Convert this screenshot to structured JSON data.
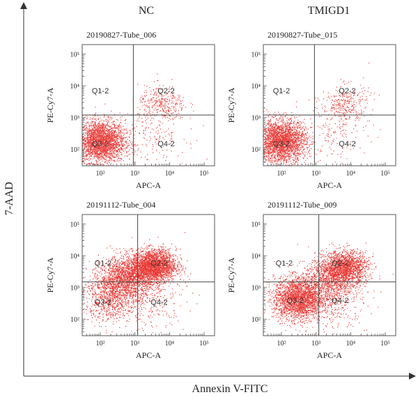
{
  "figure": {
    "column_titles": [
      "NC",
      "TMIGD1"
    ],
    "outer_y_label": "7-AAD",
    "outer_x_label": "Annexin V-FITC"
  },
  "chart_data": [
    {
      "type": "scatter",
      "title": "20190827-Tube_006",
      "xlabel": "APC-A",
      "ylabel": "PE-Cy7-A",
      "x_scale": "log",
      "y_scale": "log",
      "xlim": [
        30,
        200000
      ],
      "ylim": [
        30,
        200000
      ],
      "x_ticks": [
        "10²",
        "10³",
        "10⁴",
        "10⁵"
      ],
      "y_ticks": [
        "10²",
        "10³",
        "10⁴",
        "10⁵"
      ],
      "gate": {
        "x": 900,
        "y": 1200
      },
      "quadrants": [
        {
          "label": "Q1-2",
          "x": 100,
          "y": 7000
        },
        {
          "label": "Q2-2",
          "x": 8000,
          "y": 7000
        },
        {
          "label": "Q3-2",
          "x": 100,
          "y": 150
        },
        {
          "label": "Q4-2",
          "x": 8000,
          "y": 150
        }
      ],
      "clusters": [
        {
          "x": 100,
          "y": 180,
          "spread_x": 0.35,
          "spread_y": 0.33,
          "count": 2600
        },
        {
          "x": 6000,
          "y": 2500,
          "spread_x": 0.35,
          "spread_y": 0.3,
          "count": 320
        },
        {
          "x": 3000,
          "y": 300,
          "spread_x": 0.5,
          "spread_y": 0.45,
          "count": 160
        }
      ],
      "point_color": "#e8231e"
    },
    {
      "type": "scatter",
      "title": "20190827-Tube_015",
      "xlabel": "APC-A",
      "ylabel": "PE-Cy7-A",
      "x_scale": "log",
      "y_scale": "log",
      "xlim": [
        30,
        200000
      ],
      "ylim": [
        30,
        200000
      ],
      "x_ticks": [
        "10²",
        "10³",
        "10⁴",
        "10⁵"
      ],
      "y_ticks": [
        "10²",
        "10³",
        "10⁴",
        "10⁵"
      ],
      "gate": {
        "x": 900,
        "y": 1200
      },
      "quadrants": [
        {
          "label": "Q1-2",
          "x": 100,
          "y": 7000
        },
        {
          "label": "Q2-2",
          "x": 8000,
          "y": 7000
        },
        {
          "label": "Q3-2",
          "x": 100,
          "y": 150
        },
        {
          "label": "Q4-2",
          "x": 8000,
          "y": 150
        }
      ],
      "clusters": [
        {
          "x": 100,
          "y": 180,
          "spread_x": 0.35,
          "spread_y": 0.33,
          "count": 2600
        },
        {
          "x": 7000,
          "y": 2800,
          "spread_x": 0.35,
          "spread_y": 0.3,
          "count": 300
        },
        {
          "x": 3000,
          "y": 300,
          "spread_x": 0.5,
          "spread_y": 0.45,
          "count": 140
        }
      ],
      "point_color": "#e8231e"
    },
    {
      "type": "scatter",
      "title": "20191112-Tube_004",
      "xlabel": "APC-A",
      "ylabel": "PE-Cy7-A",
      "x_scale": "log",
      "y_scale": "log",
      "xlim": [
        30,
        200000
      ],
      "ylim": [
        30,
        200000
      ],
      "x_ticks": [
        "10²",
        "10³",
        "10⁴",
        "10⁵"
      ],
      "y_ticks": [
        "10²",
        "10³",
        "10⁴",
        "10⁵"
      ],
      "gate": {
        "x": 1200,
        "y": 1500
      },
      "quadrants": [
        {
          "label": "Q1-2",
          "x": 120,
          "y": 6000
        },
        {
          "label": "Q2-2",
          "x": 5000,
          "y": 6000
        },
        {
          "label": "Q3-2",
          "x": 120,
          "y": 350
        },
        {
          "label": "Q4-2",
          "x": 5000,
          "y": 350
        }
      ],
      "clusters": [
        {
          "x": 3500,
          "y": 5000,
          "spread_x": 0.32,
          "spread_y": 0.25,
          "count": 2400
        },
        {
          "x": 600,
          "y": 2200,
          "spread_x": 0.4,
          "spread_y": 0.32,
          "count": 1600
        },
        {
          "x": 200,
          "y": 500,
          "spread_x": 0.4,
          "spread_y": 0.38,
          "count": 900
        },
        {
          "x": 3000,
          "y": 400,
          "spread_x": 0.5,
          "spread_y": 0.5,
          "count": 250
        }
      ],
      "point_color": "#e8231e"
    },
    {
      "type": "scatter",
      "title": "20191112-Tube_009",
      "xlabel": "APC-A",
      "ylabel": "PE-Cy7-A",
      "x_scale": "log",
      "y_scale": "log",
      "xlim": [
        30,
        200000
      ],
      "ylim": [
        30,
        200000
      ],
      "x_ticks": [
        "10²",
        "10³",
        "10⁴",
        "10⁵"
      ],
      "y_ticks": [
        "10²",
        "10³",
        "10⁴",
        "10⁵"
      ],
      "gate": {
        "x": 1200,
        "y": 1500
      },
      "quadrants": [
        {
          "label": "Q1-2",
          "x": 120,
          "y": 6000
        },
        {
          "label": "Q2-2",
          "x": 5000,
          "y": 6000
        },
        {
          "label": "Q3-2",
          "x": 250,
          "y": 400
        },
        {
          "label": "Q4-2",
          "x": 5000,
          "y": 400
        }
      ],
      "clusters": [
        {
          "x": 300,
          "y": 450,
          "spread_x": 0.35,
          "spread_y": 0.33,
          "count": 2400
        },
        {
          "x": 7000,
          "y": 4500,
          "spread_x": 0.32,
          "spread_y": 0.25,
          "count": 1500
        },
        {
          "x": 2500,
          "y": 1800,
          "spread_x": 0.4,
          "spread_y": 0.35,
          "count": 1000
        },
        {
          "x": 3000,
          "y": 300,
          "spread_x": 0.5,
          "spread_y": 0.45,
          "count": 300
        }
      ],
      "point_color": "#e8231e"
    }
  ]
}
